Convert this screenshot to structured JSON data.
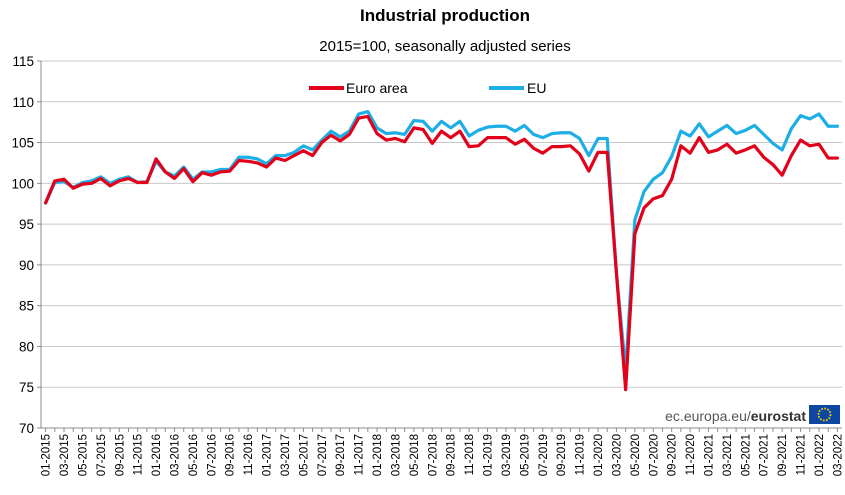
{
  "chart_data": {
    "type": "line",
    "title": "Industrial production",
    "subtitle": "2015=100, seasonally adjusted series",
    "xlabel": "",
    "ylabel": "",
    "ylim": [
      70,
      115
    ],
    "yticks": [
      70,
      75,
      80,
      85,
      90,
      95,
      100,
      105,
      110,
      115
    ],
    "grid": true,
    "legend_position": "top-center",
    "x": [
      "01-2015",
      "02-2015",
      "03-2015",
      "04-2015",
      "05-2015",
      "06-2015",
      "07-2015",
      "08-2015",
      "09-2015",
      "10-2015",
      "11-2015",
      "12-2015",
      "01-2016",
      "02-2016",
      "03-2016",
      "04-2016",
      "05-2016",
      "06-2016",
      "07-2016",
      "08-2016",
      "09-2016",
      "10-2016",
      "11-2016",
      "12-2016",
      "01-2017",
      "02-2017",
      "03-2017",
      "04-2017",
      "05-2017",
      "06-2017",
      "07-2017",
      "08-2017",
      "09-2017",
      "10-2017",
      "11-2017",
      "12-2017",
      "01-2018",
      "02-2018",
      "03-2018",
      "04-2018",
      "05-2018",
      "06-2018",
      "07-2018",
      "08-2018",
      "09-2018",
      "10-2018",
      "11-2018",
      "12-2018",
      "01-2019",
      "02-2019",
      "03-2019",
      "04-2019",
      "05-2019",
      "06-2019",
      "07-2019",
      "08-2019",
      "09-2019",
      "10-2019",
      "11-2019",
      "12-2019",
      "01-2020",
      "02-2020",
      "03-2020",
      "04-2020",
      "05-2020",
      "06-2020",
      "07-2020",
      "08-2020",
      "09-2020",
      "10-2020",
      "11-2020",
      "12-2020",
      "01-2021",
      "02-2021",
      "03-2021",
      "04-2021",
      "05-2021",
      "06-2021",
      "07-2021",
      "08-2021",
      "09-2021",
      "10-2021",
      "11-2021",
      "12-2021",
      "01-2022",
      "02-2022",
      "03-2022"
    ],
    "x_tick_labels": [
      "01-2015",
      "03-2015",
      "05-2015",
      "07-2015",
      "09-2015",
      "11-2015",
      "01-2016",
      "03-2016",
      "05-2016",
      "07-2016",
      "09-2016",
      "11-2016",
      "01-2017",
      "03-2017",
      "05-2017",
      "07-2017",
      "09-2017",
      "11-2017",
      "01-2018",
      "03-2018",
      "05-2018",
      "07-2018",
      "09-2018",
      "11-2018",
      "01-2019",
      "03-2019",
      "05-2019",
      "07-2019",
      "09-2019",
      "11-2019",
      "01-2020",
      "03-2020",
      "05-2020",
      "07-2020",
      "09-2020",
      "11-2020",
      "01-2021",
      "03-2021",
      "05-2021",
      "07-2021",
      "09-2021",
      "11-2021",
      "01-2022",
      "03-2022"
    ],
    "series": [
      {
        "name": "EU",
        "color": "#1EAEE6",
        "values": [
          97.6,
          100.1,
          100.2,
          99.5,
          100.1,
          100.3,
          100.8,
          100.0,
          100.5,
          100.8,
          100.1,
          100.2,
          102.7,
          101.4,
          100.9,
          102.0,
          100.5,
          101.4,
          101.4,
          101.7,
          101.7,
          103.2,
          103.2,
          103.0,
          102.4,
          103.4,
          103.4,
          103.8,
          104.6,
          104.1,
          105.3,
          106.4,
          105.7,
          106.4,
          108.5,
          108.8,
          106.8,
          106.1,
          106.2,
          106.0,
          107.7,
          107.6,
          106.4,
          107.6,
          106.8,
          107.6,
          105.8,
          106.5,
          106.9,
          107.0,
          107.0,
          106.4,
          107.1,
          106.0,
          105.6,
          106.1,
          106.2,
          106.2,
          105.5,
          103.4,
          105.5,
          105.5,
          89.0,
          77.0,
          95.5,
          99.0,
          100.5,
          101.3,
          103.3,
          106.4,
          105.8,
          107.3,
          105.7,
          106.4,
          107.1,
          106.1,
          106.5,
          107.1,
          106.0,
          104.9,
          104.1,
          106.7,
          108.3,
          107.9,
          108.5,
          107.0,
          107.0
        ]
      },
      {
        "name": "Euro area",
        "color": "#E2001A",
        "values": [
          97.6,
          100.3,
          100.5,
          99.4,
          99.9,
          100.0,
          100.6,
          99.7,
          100.3,
          100.6,
          100.1,
          100.1,
          103.0,
          101.4,
          100.6,
          101.8,
          100.2,
          101.3,
          101.0,
          101.4,
          101.5,
          102.8,
          102.7,
          102.5,
          102.0,
          103.1,
          102.8,
          103.4,
          104.0,
          103.4,
          105.0,
          105.9,
          105.2,
          106.0,
          108.0,
          108.2,
          106.1,
          105.3,
          105.5,
          105.1,
          106.8,
          106.6,
          104.9,
          106.4,
          105.6,
          106.4,
          104.5,
          104.6,
          105.6,
          105.6,
          105.6,
          104.8,
          105.4,
          104.3,
          103.7,
          104.5,
          104.5,
          104.6,
          103.6,
          101.5,
          103.8,
          103.8,
          89.0,
          74.7,
          93.8,
          97.0,
          98.1,
          98.5,
          100.5,
          104.6,
          103.7,
          105.6,
          103.8,
          104.1,
          104.8,
          103.7,
          104.1,
          104.6,
          103.2,
          102.3,
          101.0,
          103.4,
          105.3,
          104.6,
          104.8,
          103.1,
          103.1
        ]
      }
    ]
  },
  "source": {
    "domain_text": "ec.europa.eu/",
    "brand_text": "eurostat"
  }
}
